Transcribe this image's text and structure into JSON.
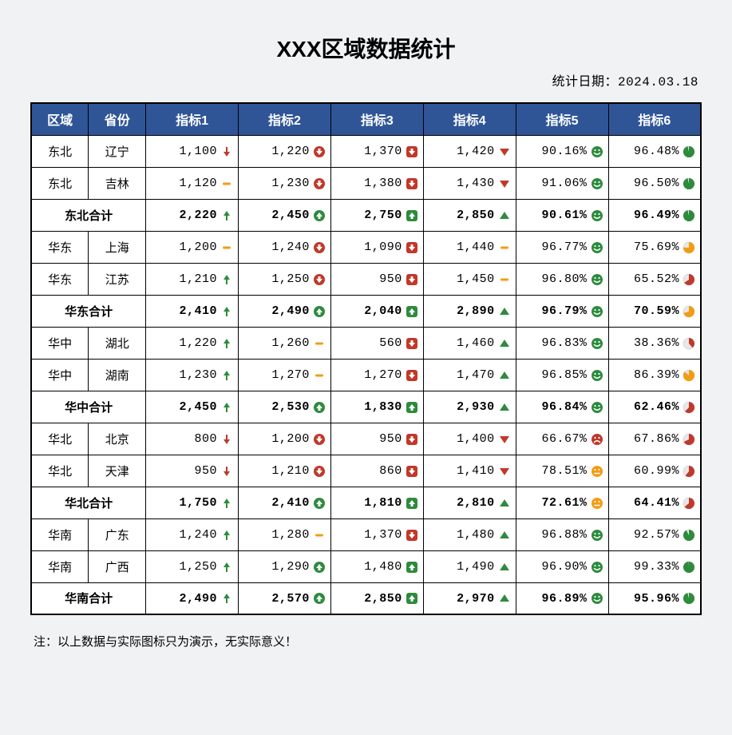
{
  "colors": {
    "header_bg": "#2f5597",
    "header_fg": "#ffffff",
    "page_bg": "#f1f2f4",
    "green": "#2e8b3d",
    "red": "#c0392b",
    "orange": "#f39c12",
    "neutral": "#d98b1a",
    "pie_empty": "#e8e8e8"
  },
  "title": "XXX区域数据统计",
  "date_label": "统计日期：2024.03.18",
  "columns": [
    "区域",
    "省份",
    "指标1",
    "指标2",
    "指标3",
    "指标4",
    "指标5",
    "指标6"
  ],
  "footnote": "注：以上数据与实际图标只为演示，无实际意义！",
  "rows": [
    {
      "type": "data",
      "region": "东北",
      "prov": "辽宁",
      "m1": {
        "v": "1,100",
        "icon": "arrow-down",
        "color": "red"
      },
      "m2": {
        "v": "1,220",
        "icon": "circle-down",
        "color": "red"
      },
      "m3": {
        "v": "1,370",
        "icon": "square-down",
        "color": "red"
      },
      "m4": {
        "v": "1,420",
        "icon": "tri-down",
        "color": "red"
      },
      "m5": {
        "v": "90.16%",
        "icon": "smile",
        "color": "green"
      },
      "m6": {
        "v": "96.48%",
        "pie": 96.48,
        "pie_color": "green"
      }
    },
    {
      "type": "data",
      "region": "东北",
      "prov": "吉林",
      "m1": {
        "v": "1,120",
        "icon": "dash",
        "color": "orange"
      },
      "m2": {
        "v": "1,230",
        "icon": "circle-down",
        "color": "red"
      },
      "m3": {
        "v": "1,380",
        "icon": "square-down",
        "color": "red"
      },
      "m4": {
        "v": "1,430",
        "icon": "tri-down",
        "color": "red"
      },
      "m5": {
        "v": "91.06%",
        "icon": "smile",
        "color": "green"
      },
      "m6": {
        "v": "96.50%",
        "pie": 96.5,
        "pie_color": "green"
      }
    },
    {
      "type": "subtotal",
      "label": "东北合计",
      "m1": {
        "v": "2,220",
        "icon": "arrow-up",
        "color": "green"
      },
      "m2": {
        "v": "2,450",
        "icon": "circle-up",
        "color": "green"
      },
      "m3": {
        "v": "2,750",
        "icon": "square-up",
        "color": "green"
      },
      "m4": {
        "v": "2,850",
        "icon": "tri-up",
        "color": "green"
      },
      "m5": {
        "v": "90.61%",
        "icon": "smile",
        "color": "green"
      },
      "m6": {
        "v": "96.49%",
        "pie": 96.49,
        "pie_color": "green"
      }
    },
    {
      "type": "data",
      "region": "华东",
      "prov": "上海",
      "m1": {
        "v": "1,200",
        "icon": "dash",
        "color": "orange"
      },
      "m2": {
        "v": "1,240",
        "icon": "circle-down",
        "color": "red"
      },
      "m3": {
        "v": "1,090",
        "icon": "square-down",
        "color": "red"
      },
      "m4": {
        "v": "1,440",
        "icon": "dash",
        "color": "orange"
      },
      "m5": {
        "v": "96.77%",
        "icon": "smile",
        "color": "green"
      },
      "m6": {
        "v": "75.69%",
        "pie": 75.69,
        "pie_color": "orange"
      }
    },
    {
      "type": "data",
      "region": "华东",
      "prov": "江苏",
      "m1": {
        "v": "1,210",
        "icon": "arrow-up",
        "color": "green"
      },
      "m2": {
        "v": "1,250",
        "icon": "circle-down",
        "color": "red"
      },
      "m3": {
        "v": "950",
        "icon": "square-down",
        "color": "red"
      },
      "m4": {
        "v": "1,450",
        "icon": "dash",
        "color": "orange"
      },
      "m5": {
        "v": "96.80%",
        "icon": "smile",
        "color": "green"
      },
      "m6": {
        "v": "65.52%",
        "pie": 65.52,
        "pie_color": "red"
      }
    },
    {
      "type": "subtotal",
      "label": "华东合计",
      "m1": {
        "v": "2,410",
        "icon": "arrow-up",
        "color": "green"
      },
      "m2": {
        "v": "2,490",
        "icon": "circle-up",
        "color": "green"
      },
      "m3": {
        "v": "2,040",
        "icon": "square-up",
        "color": "green"
      },
      "m4": {
        "v": "2,890",
        "icon": "tri-up",
        "color": "green"
      },
      "m5": {
        "v": "96.79%",
        "icon": "smile",
        "color": "green"
      },
      "m6": {
        "v": "70.59%",
        "pie": 70.59,
        "pie_color": "orange"
      }
    },
    {
      "type": "data",
      "region": "华中",
      "prov": "湖北",
      "m1": {
        "v": "1,220",
        "icon": "arrow-up",
        "color": "green"
      },
      "m2": {
        "v": "1,260",
        "icon": "dash",
        "color": "orange"
      },
      "m3": {
        "v": "560",
        "icon": "square-down",
        "color": "red"
      },
      "m4": {
        "v": "1,460",
        "icon": "tri-up",
        "color": "green"
      },
      "m5": {
        "v": "96.83%",
        "icon": "smile",
        "color": "green"
      },
      "m6": {
        "v": "38.36%",
        "pie": 38.36,
        "pie_color": "red"
      }
    },
    {
      "type": "data",
      "region": "华中",
      "prov": "湖南",
      "m1": {
        "v": "1,230",
        "icon": "arrow-up",
        "color": "green"
      },
      "m2": {
        "v": "1,270",
        "icon": "dash",
        "color": "orange"
      },
      "m3": {
        "v": "1,270",
        "icon": "square-down",
        "color": "red"
      },
      "m4": {
        "v": "1,470",
        "icon": "tri-up",
        "color": "green"
      },
      "m5": {
        "v": "96.85%",
        "icon": "smile",
        "color": "green"
      },
      "m6": {
        "v": "86.39%",
        "pie": 86.39,
        "pie_color": "orange"
      }
    },
    {
      "type": "subtotal",
      "label": "华中合计",
      "m1": {
        "v": "2,450",
        "icon": "arrow-up",
        "color": "green"
      },
      "m2": {
        "v": "2,530",
        "icon": "circle-up",
        "color": "green"
      },
      "m3": {
        "v": "1,830",
        "icon": "square-up",
        "color": "green"
      },
      "m4": {
        "v": "2,930",
        "icon": "tri-up",
        "color": "green"
      },
      "m5": {
        "v": "96.84%",
        "icon": "smile",
        "color": "green"
      },
      "m6": {
        "v": "62.46%",
        "pie": 62.46,
        "pie_color": "red"
      }
    },
    {
      "type": "data",
      "region": "华北",
      "prov": "北京",
      "m1": {
        "v": "800",
        "icon": "arrow-down",
        "color": "red"
      },
      "m2": {
        "v": "1,200",
        "icon": "circle-down",
        "color": "red"
      },
      "m3": {
        "v": "950",
        "icon": "square-down",
        "color": "red"
      },
      "m4": {
        "v": "1,400",
        "icon": "tri-down",
        "color": "red"
      },
      "m5": {
        "v": "66.67%",
        "icon": "frown",
        "color": "red"
      },
      "m6": {
        "v": "67.86%",
        "pie": 67.86,
        "pie_color": "red"
      }
    },
    {
      "type": "data",
      "region": "华北",
      "prov": "天津",
      "m1": {
        "v": "950",
        "icon": "arrow-down",
        "color": "red"
      },
      "m2": {
        "v": "1,210",
        "icon": "circle-down",
        "color": "red"
      },
      "m3": {
        "v": "860",
        "icon": "square-down",
        "color": "red"
      },
      "m4": {
        "v": "1,410",
        "icon": "tri-down",
        "color": "red"
      },
      "m5": {
        "v": "78.51%",
        "icon": "neutral",
        "color": "orange"
      },
      "m6": {
        "v": "60.99%",
        "pie": 60.99,
        "pie_color": "red"
      }
    },
    {
      "type": "subtotal",
      "label": "华北合计",
      "m1": {
        "v": "1,750",
        "icon": "arrow-up",
        "color": "green"
      },
      "m2": {
        "v": "2,410",
        "icon": "circle-up",
        "color": "green"
      },
      "m3": {
        "v": "1,810",
        "icon": "square-up",
        "color": "green"
      },
      "m4": {
        "v": "2,810",
        "icon": "tri-up",
        "color": "green"
      },
      "m5": {
        "v": "72.61%",
        "icon": "neutral",
        "color": "orange"
      },
      "m6": {
        "v": "64.41%",
        "pie": 64.41,
        "pie_color": "red"
      }
    },
    {
      "type": "data",
      "region": "华南",
      "prov": "广东",
      "m1": {
        "v": "1,240",
        "icon": "arrow-up",
        "color": "green"
      },
      "m2": {
        "v": "1,280",
        "icon": "dash",
        "color": "orange"
      },
      "m3": {
        "v": "1,370",
        "icon": "square-down",
        "color": "red"
      },
      "m4": {
        "v": "1,480",
        "icon": "tri-up",
        "color": "green"
      },
      "m5": {
        "v": "96.88%",
        "icon": "smile",
        "color": "green"
      },
      "m6": {
        "v": "92.57%",
        "pie": 92.57,
        "pie_color": "green"
      }
    },
    {
      "type": "data",
      "region": "华南",
      "prov": "广西",
      "m1": {
        "v": "1,250",
        "icon": "arrow-up",
        "color": "green"
      },
      "m2": {
        "v": "1,290",
        "icon": "circle-up",
        "color": "green"
      },
      "m3": {
        "v": "1,480",
        "icon": "square-up",
        "color": "green"
      },
      "m4": {
        "v": "1,490",
        "icon": "tri-up",
        "color": "green"
      },
      "m5": {
        "v": "96.90%",
        "icon": "smile",
        "color": "green"
      },
      "m6": {
        "v": "99.33%",
        "pie": 99.33,
        "pie_color": "green"
      }
    },
    {
      "type": "subtotal",
      "label": "华南合计",
      "m1": {
        "v": "2,490",
        "icon": "arrow-up",
        "color": "green"
      },
      "m2": {
        "v": "2,570",
        "icon": "circle-up",
        "color": "green"
      },
      "m3": {
        "v": "2,850",
        "icon": "square-up",
        "color": "green"
      },
      "m4": {
        "v": "2,970",
        "icon": "tri-up",
        "color": "green"
      },
      "m5": {
        "v": "96.89%",
        "icon": "smile",
        "color": "green"
      },
      "m6": {
        "v": "95.96%",
        "pie": 95.96,
        "pie_color": "green"
      }
    }
  ]
}
